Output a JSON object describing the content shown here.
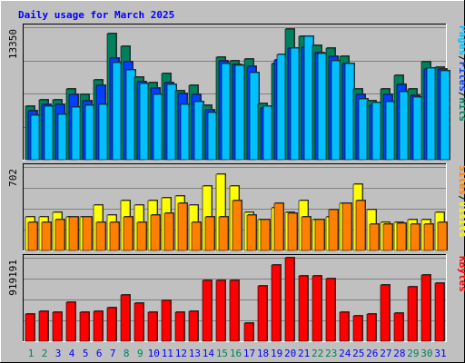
{
  "chart_data": {
    "type": "bar",
    "title": "Daily usage for March 2025",
    "categories": [
      "1",
      "2",
      "3",
      "4",
      "5",
      "6",
      "7",
      "8",
      "9",
      "10",
      "11",
      "12",
      "13",
      "14",
      "15",
      "16",
      "17",
      "18",
      "19",
      "20",
      "21",
      "22",
      "23",
      "24",
      "25",
      "26",
      "27",
      "28",
      "29",
      "30",
      "31"
    ],
    "weekend_days": [
      "1",
      "2",
      "8",
      "9",
      "15",
      "16",
      "22",
      "23",
      "29",
      "30"
    ],
    "colors": {
      "hits": "#00805c",
      "files": "#0040ff",
      "pages": "#00c0ff",
      "visits": "#ffff00",
      "sites": "#ff8000",
      "kbytes": "#ff0000",
      "title": "#0000ff",
      "weekday_label": "#0000ff",
      "weekend_label": "#00805c",
      "panel_bg": "#c0c0c0",
      "grid": "#808080"
    },
    "panels": [
      {
        "id": "hits_files_pages",
        "max_label": "13350",
        "ymax": 13350,
        "side_labels": [
          {
            "text": "Pages",
            "color": "#00c0ff"
          },
          {
            "text": "/",
            "color": "#000000"
          },
          {
            "text": "Files",
            "color": "#0040ff"
          },
          {
            "text": "/",
            "color": "#000000"
          },
          {
            "text": "Hits",
            "color": "#00805c"
          }
        ],
        "series": [
          {
            "name": "Hits",
            "color": "#00805c",
            "values": [
              5400,
              6050,
              6050,
              7130,
              6540,
              8040,
              12670,
              11390,
              8350,
              7810,
              8730,
              6950,
              7520,
              5530,
              10360,
              10010,
              10160,
              5670,
              9710,
              13190,
              12480,
              11540,
              11290,
              10380,
              7170,
              5950,
              7150,
              8480,
              7170,
              9850,
              9360
            ]
          },
          {
            "name": "Files",
            "color": "#0040ff",
            "values": [
              4910,
              5620,
              5620,
              6590,
              5940,
              7530,
              10210,
              9910,
              7900,
              7240,
              7760,
              6700,
              6550,
              5020,
              9930,
              9560,
              9460,
              5240,
              10030,
              11240,
              11320,
              10760,
              10450,
              9660,
              6610,
              5470,
              6580,
              7570,
              6460,
              9180,
              9100
            ]
          },
          {
            "name": "Pages",
            "color": "#00c0ff",
            "values": [
              4510,
              5350,
              4560,
              5320,
              5530,
              5600,
              9820,
              9040,
              7680,
              6570,
              7550,
              5580,
              5850,
              4800,
              9700,
              9470,
              8810,
              5380,
              10570,
              11280,
              12390,
              10670,
              10010,
              9710,
              6140,
              5730,
              5830,
              6850,
              6340,
              9190,
              8970
            ]
          }
        ]
      },
      {
        "id": "visits_sites",
        "max_label": "702",
        "ymax": 702,
        "side_labels": [
          {
            "text": "Sites",
            "color": "#ff8000"
          },
          {
            "text": "/",
            "color": "#000000"
          },
          {
            "text": "Visits",
            "color": "#ffff00"
          }
        ],
        "series": [
          {
            "name": "Visits",
            "color": "#ffff00",
            "values": [
              280,
              280,
              320,
              280,
              280,
              380,
              300,
              420,
              380,
              420,
              440,
              460,
              380,
              540,
              640,
              540,
              320,
              260,
              360,
              320,
              420,
              260,
              280,
              400,
              560,
              340,
              240,
              240,
              260,
              260,
              320
            ]
          },
          {
            "name": "Sites",
            "color": "#ff8000",
            "values": [
              240,
              240,
              260,
              280,
              280,
              240,
              240,
              280,
              240,
              300,
              310,
              400,
              240,
              280,
              280,
              420,
              300,
              260,
              400,
              310,
              280,
              260,
              340,
              400,
              420,
              220,
              220,
              230,
              220,
              220,
              240
            ]
          }
        ]
      },
      {
        "id": "kbytes",
        "max_label": "919191",
        "ymax": 919191,
        "side_labels": [
          {
            "text": "KBytes",
            "color": "#ff0000"
          }
        ],
        "series": [
          {
            "name": "KBytes",
            "color": "#ff0000",
            "values": [
              300000,
              330000,
              320000,
              430000,
              320000,
              330000,
              370000,
              510000,
              420000,
              320000,
              450000,
              320000,
              330000,
              670000,
              670000,
              670000,
              200000,
              610000,
              840000,
              920000,
              720000,
              720000,
              690000,
              320000,
              280000,
              300000,
              620000,
              310000,
              600000,
              730000,
              640000
            ]
          }
        ]
      }
    ]
  }
}
